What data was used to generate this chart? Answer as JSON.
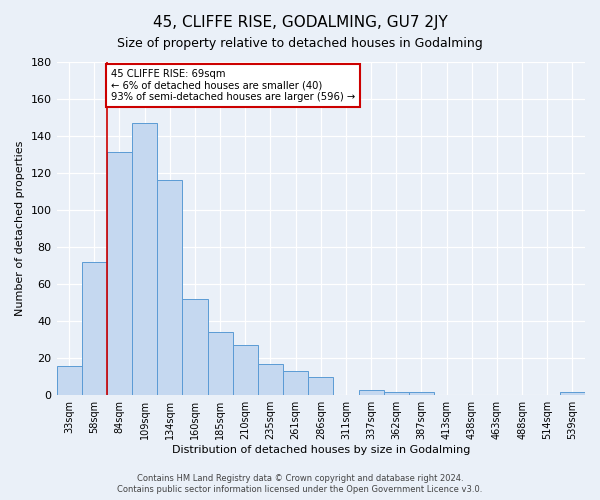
{
  "title": "45, CLIFFE RISE, GODALMING, GU7 2JY",
  "subtitle": "Size of property relative to detached houses in Godalming",
  "xlabel": "Distribution of detached houses by size in Godalming",
  "ylabel": "Number of detached properties",
  "bar_labels": [
    "33sqm",
    "58sqm",
    "84sqm",
    "109sqm",
    "134sqm",
    "160sqm",
    "185sqm",
    "210sqm",
    "235sqm",
    "261sqm",
    "286sqm",
    "311sqm",
    "337sqm",
    "362sqm",
    "387sqm",
    "413sqm",
    "438sqm",
    "463sqm",
    "488sqm",
    "514sqm",
    "539sqm"
  ],
  "bar_values": [
    16,
    72,
    131,
    147,
    116,
    52,
    34,
    27,
    17,
    13,
    10,
    0,
    3,
    2,
    2,
    0,
    0,
    0,
    0,
    0,
    2
  ],
  "bar_color": "#c5d8f0",
  "bar_edge_color": "#5b9bd5",
  "background_color": "#eaf0f8",
  "ylim": [
    0,
    180
  ],
  "yticks": [
    0,
    20,
    40,
    60,
    80,
    100,
    120,
    140,
    160,
    180
  ],
  "red_line_x": 1.5,
  "annotation_text": "45 CLIFFE RISE: 69sqm\n← 6% of detached houses are smaller (40)\n93% of semi-detached houses are larger (596) →",
  "annotation_box_color": "#ffffff",
  "annotation_border_color": "#cc0000",
  "footer_line1": "Contains HM Land Registry data © Crown copyright and database right 2024.",
  "footer_line2": "Contains public sector information licensed under the Open Government Licence v3.0."
}
